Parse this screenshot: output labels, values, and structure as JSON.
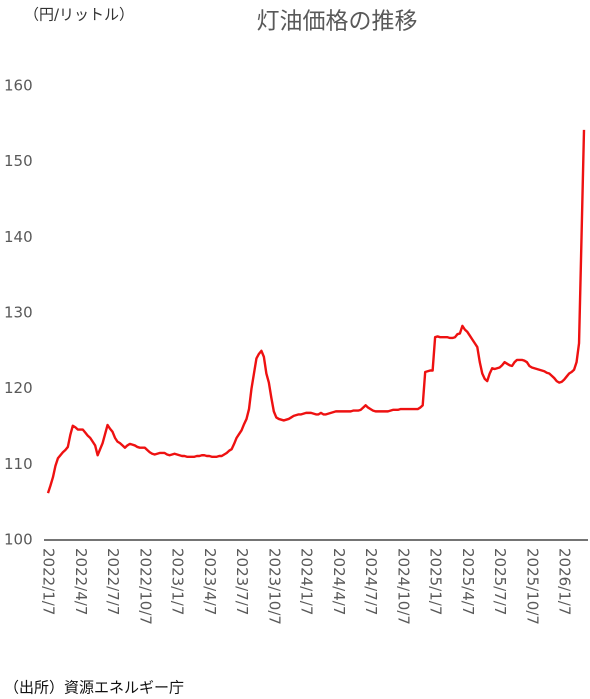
{
  "chart_data": {
    "type": "line",
    "title": "灯油価格の推移",
    "y_label": "（円/リットル）",
    "source": "（出所）資源エネルギー庁",
    "color": "#ee1111",
    "ylim": [
      100,
      160
    ],
    "yticks": [
      100,
      110,
      120,
      130,
      140,
      150,
      160
    ],
    "grid": false,
    "categories": [
      "2022/1/7",
      null,
      null,
      null,
      null,
      null,
      null,
      null,
      null,
      null,
      null,
      null,
      null,
      "2022/4/7",
      null,
      null,
      null,
      null,
      null,
      null,
      null,
      null,
      null,
      null,
      null,
      null,
      "2022/7/7",
      null,
      null,
      null,
      null,
      null,
      null,
      null,
      null,
      null,
      null,
      null,
      null,
      "2022/10/7",
      null,
      null,
      null,
      null,
      null,
      null,
      null,
      null,
      null,
      null,
      null,
      null,
      "2023/1/7",
      null,
      null,
      null,
      null,
      null,
      null,
      null,
      null,
      null,
      null,
      null,
      null,
      "2023/4/7",
      null,
      null,
      null,
      null,
      null,
      null,
      null,
      null,
      null,
      null,
      null,
      null,
      "2023/7/7",
      null,
      null,
      null,
      null,
      null,
      null,
      null,
      null,
      null,
      null,
      null,
      null,
      "2023/10/7",
      null,
      null,
      null,
      null,
      null,
      null,
      null,
      null,
      null,
      null,
      null,
      null,
      "2024/1/7",
      null,
      null,
      null,
      null,
      null,
      null,
      null,
      null,
      null,
      null,
      null,
      null,
      "2024/4/7",
      null,
      null,
      null,
      null,
      null,
      null,
      null,
      null,
      null,
      null,
      null,
      null,
      "2024/7/7",
      null,
      null,
      null,
      null,
      null,
      null,
      null,
      null,
      null,
      null,
      null,
      null,
      "2024/10/7",
      null,
      null,
      null,
      null,
      null,
      null,
      null,
      null,
      null,
      null,
      null,
      null,
      "2025/1/7",
      null,
      null,
      null,
      null,
      null,
      null,
      null,
      null,
      null,
      null,
      null,
      null,
      "2025/4/7",
      null,
      null,
      null,
      null,
      null,
      null,
      null,
      null,
      null,
      null,
      null,
      null,
      "2025/7/7",
      null,
      null,
      null,
      null,
      null,
      null,
      null,
      null,
      null,
      null,
      null,
      null,
      "2025/10/7",
      null,
      null,
      null,
      null,
      null,
      null,
      null,
      null,
      null,
      null,
      null,
      null,
      "2026/1/7",
      null,
      null,
      null,
      null,
      null,
      null,
      null,
      null
    ],
    "values": [
      106.2,
      107.2,
      108.3,
      109.8,
      110.8,
      111.2,
      111.6,
      111.9,
      112.3,
      113.9,
      115.1,
      114.9,
      114.6,
      114.6,
      114.6,
      114.2,
      113.8,
      113.5,
      113.0,
      112.5,
      111.2,
      112.0,
      112.8,
      114.0,
      115.2,
      114.7,
      114.3,
      113.5,
      113.0,
      112.8,
      112.5,
      112.2,
      112.5,
      112.7,
      112.6,
      112.5,
      112.3,
      112.2,
      112.2,
      112.2,
      111.9,
      111.6,
      111.4,
      111.3,
      111.4,
      111.5,
      111.5,
      111.5,
      111.3,
      111.2,
      111.3,
      111.4,
      111.3,
      111.2,
      111.1,
      111.1,
      111.0,
      111.0,
      111.0,
      111.0,
      111.1,
      111.1,
      111.2,
      111.2,
      111.1,
      111.1,
      111.0,
      111.0,
      111.0,
      111.1,
      111.1,
      111.3,
      111.5,
      111.8,
      112.0,
      112.7,
      113.5,
      114.0,
      114.5,
      115.3,
      116.0,
      117.3,
      120.0,
      122.0,
      124.0,
      124.6,
      125.0,
      124.2,
      122.0,
      120.8,
      118.8,
      117.0,
      116.2,
      116.0,
      115.9,
      115.8,
      115.9,
      116.0,
      116.2,
      116.4,
      116.5,
      116.6,
      116.6,
      116.7,
      116.8,
      116.8,
      116.8,
      116.7,
      116.6,
      116.6,
      116.8,
      116.6,
      116.6,
      116.7,
      116.8,
      116.9,
      117.0,
      117.0,
      117.0,
      117.0,
      117.0,
      117.0,
      117.0,
      117.1,
      117.1,
      117.1,
      117.2,
      117.5,
      117.8,
      117.5,
      117.3,
      117.1,
      117.0,
      117.0,
      117.0,
      117.0,
      117.0,
      117.0,
      117.1,
      117.2,
      117.2,
      117.2,
      117.3,
      117.3,
      117.3,
      117.3,
      117.3,
      117.3,
      117.3,
      117.3,
      117.5,
      117.8,
      122.2,
      122.3,
      122.4,
      122.4,
      126.8,
      126.9,
      126.8,
      126.8,
      126.8,
      126.8,
      126.7,
      126.7,
      126.8,
      127.2,
      127.3,
      128.3,
      127.8,
      127.5,
      127.0,
      126.5,
      126.0,
      125.5,
      123.5,
      122.0,
      121.3,
      121.0,
      122.0,
      122.7,
      122.6,
      122.7,
      122.8,
      123.1,
      123.5,
      123.3,
      123.1,
      123.0,
      123.5,
      123.8,
      123.8,
      123.8,
      123.7,
      123.5,
      123.0,
      122.8,
      122.7,
      122.6,
      122.5,
      122.4,
      122.3,
      122.1,
      122.0,
      121.7,
      121.4,
      121.0,
      120.8,
      120.9,
      121.2,
      121.6,
      122.0,
      122.2,
      122.5,
      123.5,
      126.0,
      140.0,
      154.2
    ]
  }
}
